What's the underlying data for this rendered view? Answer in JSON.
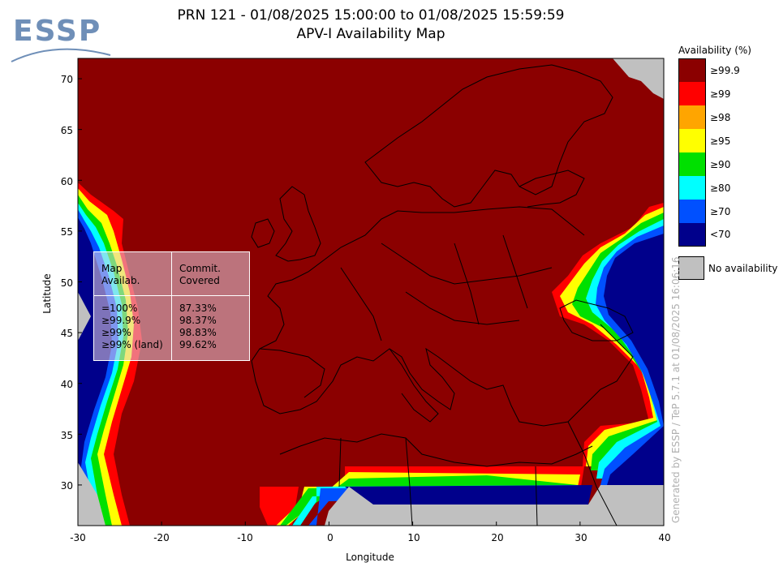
{
  "header": {
    "title_line1": "PRN 121 - 01/08/2025 15:00:00 to 01/08/2025 15:59:59",
    "title_line2": "APV-I Availability Map",
    "logo_text": "ESSP"
  },
  "axes": {
    "xlabel": "Longitude",
    "ylabel": "Latitude",
    "x_ticks": [
      "-30",
      "-20",
      "-10",
      "0",
      "10",
      "20",
      "30",
      "40"
    ],
    "y_ticks": [
      "70",
      "65",
      "60",
      "55",
      "50",
      "45",
      "40",
      "35",
      "30"
    ],
    "x_range": [
      -30,
      40
    ],
    "y_range": [
      26,
      72
    ]
  },
  "legend": {
    "title": "Availability (%)",
    "items": [
      {
        "label": "≥99.9",
        "color": "#8b0000"
      },
      {
        "label": "≥99",
        "color": "#ff0000"
      },
      {
        "label": "≥98",
        "color": "#ffa500"
      },
      {
        "label": "≥95",
        "color": "#ffff00"
      },
      {
        "label": "≥90",
        "color": "#00e000"
      },
      {
        "label": "≥80",
        "color": "#00ffff"
      },
      {
        "label": "≥70",
        "color": "#0050ff"
      },
      {
        "label": "<70",
        "color": "#00008b"
      }
    ],
    "no_availability_label": "No availability",
    "no_availability_color": "#c0c0c0"
  },
  "stats_table": {
    "col1_header": "Map\nAvailab.",
    "col2_header": "Commit.\nCovered",
    "rows": [
      {
        "level": "=100%",
        "value": "87.33%"
      },
      {
        "level": "≥99.9%",
        "value": "98.37%"
      },
      {
        "level": "≥99%",
        "value": "98.83%"
      },
      {
        "level": "≥99% (land)",
        "value": "99.62%"
      }
    ]
  },
  "watermark": "Generated by ESSP / TeP 5.7.1 at 01/08/2025 16:06:16"
}
